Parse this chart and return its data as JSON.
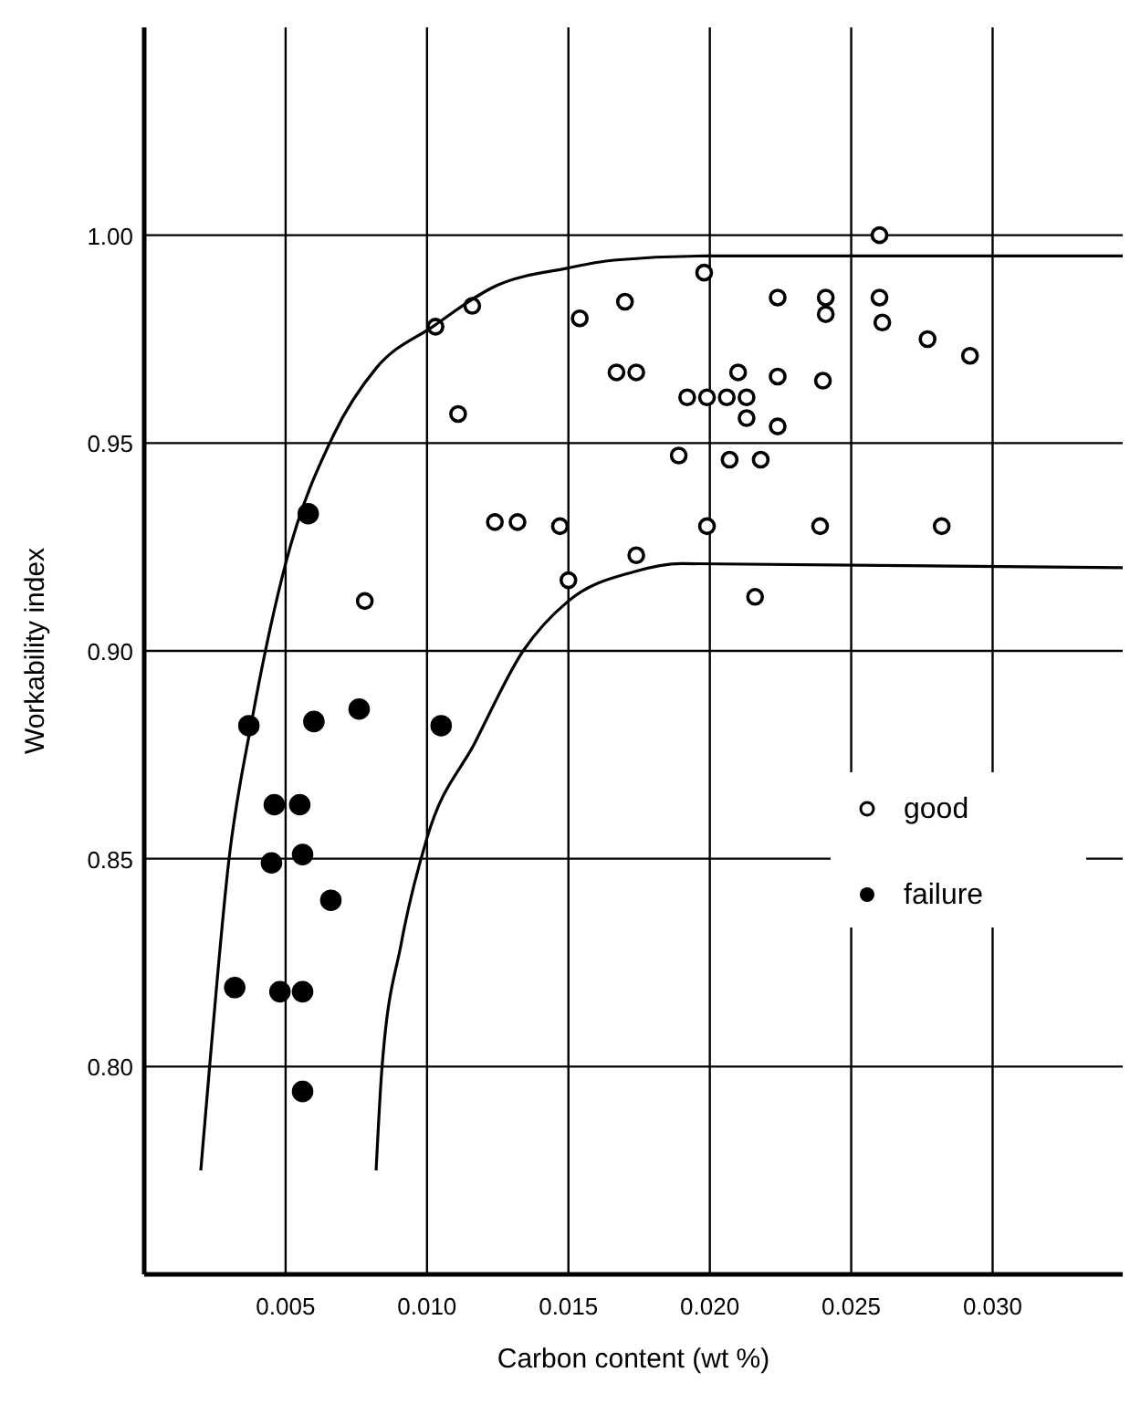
{
  "chart_data": {
    "type": "scatter",
    "xlabel": "Carbon content (wt %)",
    "ylabel": "Workability index",
    "xlim": [
      0,
      0.0346
    ],
    "ylim": [
      0.75,
      1.05
    ],
    "xticks": [
      0.005,
      {
        "value": 0.01,
        "label": "0.010"
      },
      0.015,
      {
        "value": 0.02,
        "label": "0.020"
      },
      0.025,
      {
        "value": 0.03,
        "label": "0.030"
      }
    ],
    "yticks": [
      {
        "value": 0.8,
        "label": "0.80"
      },
      0.85,
      {
        "value": 0.9,
        "label": "0.90"
      },
      0.95,
      {
        "value": 1,
        "label": "1.00"
      }
    ],
    "grid": true,
    "legend": "bottom right",
    "series": [
      {
        "name": "good",
        "marker": "circle",
        "color": "#000000",
        "x": [
          0.0103,
          0.0116,
          0.0111,
          0.0078,
          0.0124,
          0.0132,
          0.0147,
          0.015,
          0.0154,
          0.017,
          0.0167,
          0.0174,
          0.0198,
          0.0224,
          0.0241,
          0.0241,
          0.026,
          0.026,
          0.0261,
          0.0277,
          0.0292,
          0.021,
          0.0224,
          0.024,
          0.0192,
          0.0199,
          0.0206,
          0.0213,
          0.0213,
          0.0224,
          0.0189,
          0.0207,
          0.0218,
          0.0199,
          0.0239,
          0.0282,
          0.0174,
          0.0216
        ],
        "values": [
          0.978,
          0.983,
          0.957,
          0.912,
          0.931,
          0.931,
          0.93,
          0.917,
          0.98,
          0.984,
          0.967,
          0.967,
          0.991,
          0.985,
          0.985,
          0.981,
          0.985,
          1.0,
          0.979,
          0.975,
          0.971,
          0.967,
          0.966,
          0.965,
          0.961,
          0.961,
          0.961,
          0.961,
          0.956,
          0.954,
          0.947,
          0.946,
          0.946,
          0.93,
          0.93,
          0.93,
          0.923,
          0.913
        ]
      },
      {
        "name": "failure",
        "marker": "circle",
        "color": "#000000",
        "x": [
          0.0058,
          0.0037,
          0.006,
          0.0076,
          0.0105,
          0.0046,
          0.0055,
          0.0045,
          0.0056,
          0.0066,
          0.0032,
          0.0048,
          0.0056,
          0.0056
        ],
        "values": [
          0.933,
          0.882,
          0.883,
          0.886,
          0.882,
          0.863,
          0.863,
          0.849,
          0.851,
          0.84,
          0.819,
          0.818,
          0.818,
          0.794
        ]
      },
      {
        "type": "line",
        "color": "#000000",
        "marker": "none",
        "line_style": "solid",
        "x": [
          0.002,
          0.0023,
          0.003,
          0.0038,
          0.005,
          0.0067,
          0.0082,
          0.0102,
          0.0125,
          0.0149,
          0.0166,
          0.0199,
          0.0346
        ],
        "values": [
          0.775,
          0.799,
          0.85,
          0.883,
          0.921,
          0.952,
          0.968,
          0.978,
          0.988,
          0.992,
          0.994,
          0.995,
          0.995
        ]
      },
      {
        "type": "line",
        "color": "#000000",
        "marker": "none",
        "line_style": "solid",
        "x": [
          0.0082,
          0.0084,
          0.0091,
          0.01,
          0.0117,
          0.0134,
          0.015,
          0.0173,
          0.019,
          0.0346
        ],
        "values": [
          0.775,
          0.799,
          0.83,
          0.855,
          0.878,
          0.9,
          0.912,
          0.919,
          0.921,
          0.92
        ]
      }
    ]
  }
}
